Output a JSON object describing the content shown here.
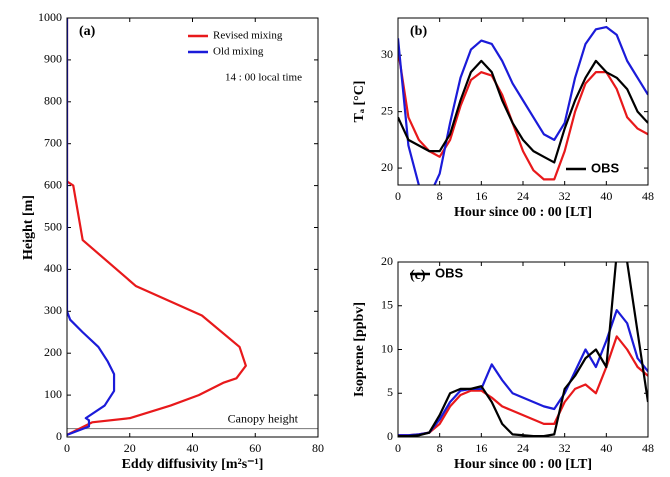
{
  "chart_data": [
    {
      "type": "line",
      "panel_label": "(a)",
      "annotation": "14 : 00 local time",
      "xlabel": "Eddy diffusivity [m²s⁻¹]",
      "ylabel": "Height [m]",
      "xlim": [
        0,
        80
      ],
      "xticks": [
        0,
        20,
        40,
        60,
        80
      ],
      "ylim": [
        0,
        1000
      ],
      "yticks": [
        0,
        100,
        200,
        300,
        400,
        500,
        600,
        700,
        800,
        900,
        1000
      ],
      "legend": "upper right",
      "canopy_height": 20,
      "canopy_label": "Canopy height",
      "series": [
        {
          "name": "Revised mixing",
          "color": "#e8191b",
          "x": [
            0,
            8,
            20,
            33,
            42,
            50,
            54,
            57,
            55,
            43,
            22,
            5,
            2,
            0,
            0
          ],
          "values": [
            5,
            35,
            45,
            75,
            100,
            130,
            140,
            170,
            215,
            290,
            360,
            470,
            600,
            610,
            1000
          ]
        },
        {
          "name": "Old mixing",
          "color": "#1b1bd9",
          "x": [
            0,
            7,
            7,
            6,
            12,
            15,
            15,
            13,
            10,
            5,
            1,
            0,
            0
          ],
          "values": [
            5,
            25,
            40,
            45,
            75,
            110,
            150,
            180,
            215,
            250,
            280,
            300,
            1000
          ]
        }
      ]
    },
    {
      "type": "line",
      "panel_label": "(b)",
      "xlabel": "Hour since 00 : 00 [LT]",
      "ylabel": "Tₐ [°C]",
      "x": [
        0,
        2,
        4,
        6,
        8,
        10,
        12,
        14,
        16,
        18,
        20,
        22,
        24,
        26,
        28,
        30,
        32,
        34,
        36,
        38,
        40,
        42,
        44,
        46,
        48
      ],
      "xlim": [
        0,
        48
      ],
      "xticks": [
        0,
        8,
        16,
        24,
        32,
        40,
        48
      ],
      "ylim": [
        18.5,
        33.3
      ],
      "yticks": [
        20,
        25,
        30
      ],
      "legend": "lower right",
      "series": [
        {
          "color": "#e8191b",
          "values": [
            30.5,
            24.5,
            22.5,
            21.5,
            21,
            22.5,
            25.5,
            27.8,
            28.5,
            28.2,
            26.5,
            24,
            21.5,
            19.8,
            19,
            19,
            21.5,
            25,
            27.5,
            28.5,
            28.5,
            27,
            24.5,
            23.5,
            23
          ]
        },
        {
          "color": "#1b1bd9",
          "values": [
            31.5,
            22,
            18.5,
            17.5,
            19.5,
            24,
            28,
            30.5,
            31.3,
            31,
            29.5,
            27.5,
            26,
            24.5,
            23,
            22.5,
            24,
            28,
            31,
            32.3,
            32.5,
            31.8,
            29.5,
            28,
            26.5
          ]
        },
        {
          "name": "OBS",
          "color": "#000000",
          "values": [
            24.5,
            22.5,
            22,
            21.5,
            21.5,
            23,
            26,
            28.5,
            29.5,
            28.5,
            26,
            24,
            22.5,
            21.5,
            21,
            20.5,
            23.5,
            26,
            28,
            29.5,
            28.5,
            28,
            27,
            25,
            24
          ]
        }
      ]
    },
    {
      "type": "line",
      "panel_label": "(c)",
      "xlabel": "Hour since 00 : 00 [LT]",
      "ylabel": "Isoprene [ppbv]",
      "x": [
        0,
        2,
        4,
        6,
        8,
        10,
        12,
        14,
        16,
        18,
        20,
        22,
        24,
        26,
        28,
        30,
        32,
        34,
        36,
        38,
        40,
        42,
        44,
        46,
        48
      ],
      "xlim": [
        0,
        48
      ],
      "xticks": [
        0,
        8,
        16,
        24,
        32,
        40,
        48
      ],
      "ylim": [
        0,
        20
      ],
      "yticks": [
        0,
        5,
        10,
        15,
        20
      ],
      "legend": "upper left",
      "series": [
        {
          "color": "#e8191b",
          "values": [
            0.2,
            0.2,
            0.3,
            0.5,
            1.5,
            3.5,
            4.8,
            5.3,
            5.3,
            4.5,
            3.5,
            3,
            2.5,
            2,
            1.5,
            1.5,
            4,
            5.5,
            6,
            5,
            8,
            11.5,
            10,
            8,
            7
          ]
        },
        {
          "color": "#1b1bd9",
          "values": [
            0.2,
            0.2,
            0.3,
            0.5,
            2,
            4,
            5.3,
            5.5,
            5.5,
            8.3,
            6.5,
            5,
            4.5,
            4,
            3.5,
            3.2,
            5,
            7.5,
            10,
            8,
            11,
            14.5,
            13,
            9,
            7.5
          ]
        },
        {
          "name": "OBS",
          "color": "#000000",
          "values": [
            0.1,
            0.1,
            0.2,
            0.5,
            2.5,
            5,
            5.5,
            5.5,
            5.8,
            4,
            1.5,
            0.3,
            0.2,
            0.1,
            0.1,
            0.3,
            5.5,
            7,
            9,
            10,
            8,
            21,
            20,
            12,
            4
          ]
        }
      ]
    }
  ]
}
